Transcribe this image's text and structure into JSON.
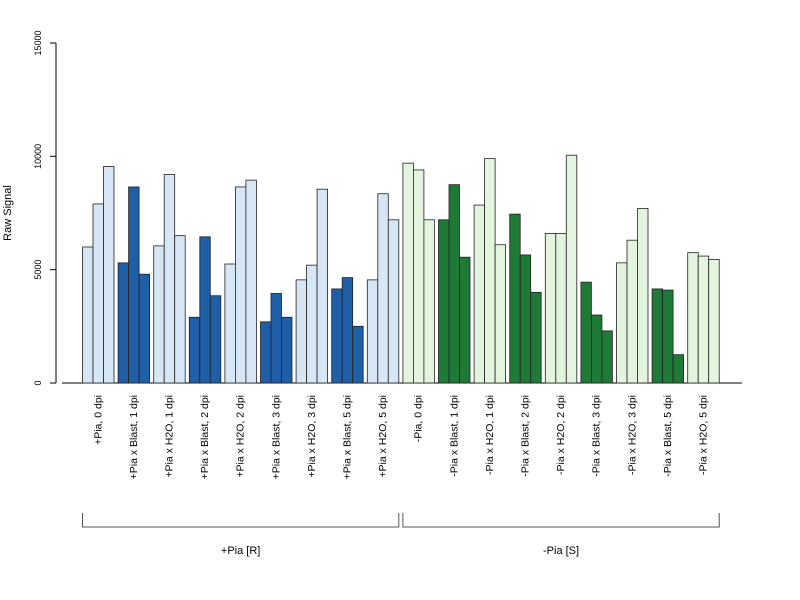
{
  "chart_data": {
    "type": "bar",
    "title": "",
    "ylabel": "Raw Signal",
    "xlabel": "",
    "ylim": [
      0,
      15000
    ],
    "yticks": [
      0,
      5000,
      10000,
      15000
    ],
    "grid": false,
    "categories": [
      "+Pia, 0 dpi",
      "+Pia x Blast, 1 dpi",
      "+Pia x H2O, 1 dpi",
      "+Pia x Blast, 2 dpi",
      "+Pia x H2O, 2 dpi",
      "+Pia x Blast, 3 dpi",
      "+Pia x H2O, 3 dpi",
      "+Pia x Blast, 5 dpi",
      "+Pia x H2O, 5 dpi",
      "-Pia, 0 dpi",
      "-Pia x Blast, 1 dpi",
      "-Pia x H2O, 1 dpi",
      "-Pia x Blast, 2 dpi",
      "-Pia x H2O, 2 dpi",
      "-Pia x Blast, 3 dpi",
      "-Pia x H2O, 3 dpi",
      "-Pia x Blast, 5 dpi",
      "-Pia x H2O, 5 dpi"
    ],
    "values": [
      [
        6000,
        7900,
        9550
      ],
      [
        5300,
        8650,
        4800
      ],
      [
        6050,
        9200,
        6500
      ],
      [
        2900,
        6450,
        3850
      ],
      [
        5250,
        8650,
        8950
      ],
      [
        2700,
        3950,
        2900
      ],
      [
        4550,
        5200,
        8550
      ],
      [
        4150,
        4650,
        2500
      ],
      [
        4550,
        8350,
        7200
      ],
      [
        9700,
        9400,
        7200
      ],
      [
        7200,
        8750,
        5550
      ],
      [
        7850,
        9900,
        6100
      ],
      [
        7450,
        5650,
        4000
      ],
      [
        6600,
        6600,
        10050
      ],
      [
        4450,
        3000,
        2300
      ],
      [
        5300,
        6300,
        7700
      ],
      [
        4150,
        4100,
        1250
      ],
      [
        5750,
        5600,
        5450
      ]
    ],
    "bar_colors": [
      "#d6e6f5",
      "#1f5fa8",
      "#d6e6f5",
      "#1f5fa8",
      "#d6e6f5",
      "#1f5fa8",
      "#d6e6f5",
      "#1f5fa8",
      "#d6e6f5",
      "#e3f5de",
      "#1f7a37",
      "#e3f5de",
      "#1f7a37",
      "#e3f5de",
      "#1f7a37",
      "#e3f5de",
      "#1f7a37",
      "#e3f5de"
    ],
    "groups": [
      {
        "label": "+Pia [R]",
        "from": 0,
        "to": 8
      },
      {
        "label": "-Pia [S]",
        "from": 9,
        "to": 17
      }
    ]
  }
}
